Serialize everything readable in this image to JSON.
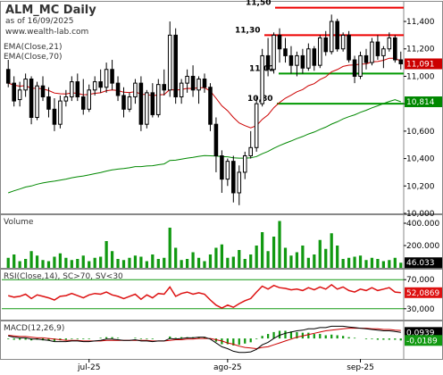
{
  "header": {
    "title": "ALM_MC Daily",
    "subtitle": "as of 16/09/2025",
    "source": "www.wealth-lab.com",
    "legend_ema21": "EMA(Close,21)",
    "legend_ema70": "EMA(Close,70)"
  },
  "colors": {
    "up": "#000000",
    "down": "#000000",
    "ema21": "#cc0000",
    "ema70": "#008800",
    "volume": "#119911",
    "rsi": "#dd1111",
    "macd": "#000000",
    "signal": "#cc0000",
    "hist": "#119911",
    "resistance": "#ee0000",
    "support": "#009900"
  },
  "labels": {
    "price_ticks": [
      "11,400",
      "11,200",
      "11,000",
      "10,800",
      "10,600",
      "10,400",
      "10,200",
      "10,000"
    ],
    "levels": [
      "11,50",
      "11,30",
      "11,02",
      "10,80"
    ],
    "price_tag_close": "11,091",
    "price_tag_ema70": "10,814",
    "volume_title": "Volume",
    "volume_ticks": [
      "400.000",
      "200.000"
    ],
    "volume_tag": "46.033",
    "rsi_title": "RSI(Close,14), SC>70, SV<30",
    "rsi_ticks": [
      "70,000",
      "30,000"
    ],
    "rsi_tag": "52,0869",
    "macd_title": "MACD(12,26,9)",
    "macd_tag1": "0,0939",
    "macd_tag2": "-0,0189",
    "months": [
      "jul-25",
      "ago-25",
      "sep-25"
    ]
  },
  "chart_data": [
    {
      "type": "candlestick",
      "title": "ALM_MC Daily",
      "ylim": [
        10000,
        11550
      ],
      "series": [
        {
          "name": "OHLC",
          "values": [
            [
              11050,
              11120,
              10920,
              10950
            ],
            [
              10950,
              11000,
              10780,
              10820
            ],
            [
              10830,
              10960,
              10780,
              10900
            ],
            [
              10900,
              11020,
              10850,
              10980
            ],
            [
              10980,
              11000,
              10650,
              10700
            ],
            [
              10700,
              10960,
              10680,
              10930
            ],
            [
              10930,
              11000,
              10820,
              10850
            ],
            [
              10850,
              10920,
              10700,
              10760
            ],
            [
              10760,
              10840,
              10600,
              10650
            ],
            [
              10650,
              10860,
              10620,
              10820
            ],
            [
              10820,
              10900,
              10780,
              10850
            ],
            [
              10850,
              11000,
              10820,
              10960
            ],
            [
              10960,
              11020,
              10820,
              10850
            ],
            [
              10850,
              10980,
              10720,
              10760
            ],
            [
              10760,
              10940,
              10740,
              10900
            ],
            [
              10900,
              11000,
              10860,
              10960
            ],
            [
              10960,
              11050,
              10880,
              10920
            ],
            [
              10920,
              11100,
              10880,
              11050
            ],
            [
              11050,
              11120,
              10900,
              10950
            ],
            [
              10950,
              11000,
              10820,
              10860
            ],
            [
              10860,
              10920,
              10700,
              10760
            ],
            [
              10760,
              10880,
              10740,
              10850
            ],
            [
              10850,
              10980,
              10800,
              10950
            ],
            [
              10950,
              11000,
              10600,
              10650
            ],
            [
              10650,
              10900,
              10620,
              10880
            ],
            [
              10880,
              10950,
              10700,
              10720
            ],
            [
              10720,
              10980,
              10700,
              10940
            ],
            [
              10940,
              11050,
              10860,
              10900
            ],
            [
              10900,
              11400,
              10850,
              11300
            ],
            [
              11300,
              11350,
              10800,
              10850
            ],
            [
              10850,
              10980,
              10800,
              10950
            ],
            [
              10950,
              11050,
              10880,
              11000
            ],
            [
              11000,
              11080,
              10850,
              10900
            ],
            [
              10900,
              11000,
              10800,
              10980
            ],
            [
              10980,
              11020,
              10880,
              10920
            ],
            [
              10920,
              10950,
              10600,
              10650
            ],
            [
              10650,
              10700,
              10300,
              10420
            ],
            [
              10420,
              10460,
              10150,
              10250
            ],
            [
              10250,
              10400,
              10200,
              10380
            ],
            [
              10380,
              10420,
              10080,
              10150
            ],
            [
              10150,
              10350,
              10060,
              10300
            ],
            [
              10300,
              10450,
              10250,
              10420
            ],
            [
              10420,
              10600,
              10400,
              10480
            ],
            [
              10480,
              10850,
              10450,
              10800
            ],
            [
              10800,
              11200,
              10780,
              11150
            ],
            [
              11150,
              11280,
              11000,
              11050
            ],
            [
              11050,
              11320,
              11020,
              11300
            ],
            [
              11300,
              11350,
              11100,
              11200
            ],
            [
              11200,
              11280,
              11100,
              11150
            ],
            [
              11150,
              11220,
              11020,
              11080
            ],
            [
              11080,
              11180,
              11000,
              11150
            ],
            [
              11150,
              11200,
              11020,
              11060
            ],
            [
              11060,
              11240,
              11040,
              11200
            ],
            [
              11200,
              11220,
              11040,
              11080
            ],
            [
              11080,
              11300,
              11060,
              11280
            ],
            [
              11280,
              11330,
              11150,
              11180
            ],
            [
              11180,
              11450,
              11160,
              11400
            ],
            [
              11400,
              11420,
              11180,
              11200
            ],
            [
              11200,
              11320,
              11180,
              11300
            ],
            [
              11300,
              11330,
              11100,
              11120
            ],
            [
              11120,
              11150,
              10950,
              11000
            ],
            [
              11000,
              11180,
              10980,
              11150
            ],
            [
              11150,
              11200,
              11050,
              11100
            ],
            [
              11100,
              11280,
              11080,
              11250
            ],
            [
              11250,
              11300,
              11120,
              11150
            ],
            [
              11150,
              11220,
              11060,
              11200
            ],
            [
              11200,
              11320,
              11180,
              11280
            ],
            [
              11280,
              11300,
              11100,
              11120
            ],
            [
              11120,
              11180,
              11050,
              11091
            ]
          ]
        },
        {
          "name": "EMA(Close,21)",
          "values": [
            10950,
            10935,
            10928,
            10932,
            10912,
            10914,
            10908,
            10896,
            10878,
            10873,
            10871,
            10879,
            10876,
            10865,
            10868,
            10876,
            10880,
            10895,
            10900,
            10896,
            10884,
            10882,
            10888,
            10868,
            10868,
            10858,
            10864,
            10867,
            10904,
            10899,
            10903,
            10912,
            10911,
            10916,
            10916,
            10892,
            10840,
            10785,
            10748,
            10700,
            10660,
            10640,
            10624,
            10640,
            10686,
            10719,
            10771,
            10809,
            10840,
            10862,
            10887,
            10903,
            10931,
            10946,
            10976,
            10996,
            11033,
            11049,
            11072,
            11081,
            11083,
            11089,
            11090,
            11105,
            11108,
            11117,
            11132,
            11131,
            11111
          ]
        },
        {
          "name": "EMA(Close,70)",
          "values": [
            10150,
            10165,
            10178,
            10192,
            10200,
            10213,
            10222,
            10229,
            10235,
            10242,
            10250,
            10260,
            10267,
            10273,
            10281,
            10290,
            10298,
            10309,
            10317,
            10323,
            10327,
            10333,
            10341,
            10341,
            10346,
            10348,
            10355,
            10361,
            10386,
            10388,
            10395,
            10403,
            10409,
            10416,
            10422,
            10420,
            10418,
            10414,
            10413,
            10406,
            10403,
            10403,
            10405,
            10415,
            10435,
            10452,
            10475,
            10494,
            10512,
            10528,
            10546,
            10561,
            10579,
            10593,
            10613,
            10629,
            10651,
            10668,
            10689,
            10705,
            10719,
            10737,
            10752,
            10770,
            10785,
            10801,
            10817,
            10830,
            10814
          ]
        }
      ],
      "annotations": {
        "resistance": [
          11500,
          11300
        ],
        "support": [
          11020,
          10800
        ]
      }
    },
    {
      "type": "bar",
      "title": "Volume",
      "ylim": [
        0,
        480000
      ],
      "values": [
        90000,
        120000,
        60000,
        80000,
        150000,
        110000,
        70000,
        60000,
        100000,
        130000,
        90000,
        70000,
        80000,
        110000,
        60000,
        90000,
        100000,
        240000,
        150000,
        80000,
        70000,
        90000,
        110000,
        100000,
        60000,
        120000,
        80000,
        90000,
        360000,
        180000,
        70000,
        80000,
        140000,
        90000,
        60000,
        120000,
        180000,
        210000,
        90000,
        100000,
        160000,
        80000,
        120000,
        200000,
        320000,
        150000,
        280000,
        420000,
        180000,
        110000,
        140000,
        200000,
        90000,
        120000,
        250000,
        170000,
        310000,
        200000,
        80000,
        90000,
        100000,
        110000,
        70000,
        90000,
        80000,
        60000,
        70000,
        90000,
        46033
      ]
    },
    {
      "type": "line",
      "title": "RSI(Close,14), SC>70, SV<30",
      "ylim": [
        15,
        85
      ],
      "values": [
        48,
        46,
        47,
        50,
        44,
        49,
        47,
        45,
        42,
        47,
        48,
        51,
        48,
        45,
        49,
        51,
        50,
        53,
        49,
        47,
        44,
        47,
        50,
        43,
        49,
        45,
        51,
        50,
        60,
        47,
        51,
        53,
        50,
        52,
        50,
        42,
        35,
        31,
        35,
        32,
        37,
        41,
        44,
        53,
        61,
        57,
        62,
        59,
        58,
        56,
        57,
        55,
        59,
        56,
        60,
        57,
        63,
        57,
        60,
        55,
        53,
        57,
        55,
        59,
        55,
        57,
        59,
        53,
        52.09
      ],
      "thresholds": [
        70,
        30
      ]
    },
    {
      "type": "line",
      "title": "MACD(12,26,9)",
      "ylim": [
        -0.32,
        0.28
      ],
      "series": [
        {
          "name": "MACD",
          "values": [
            0.04,
            0.02,
            0.01,
            0.01,
            -0.01,
            -0.01,
            -0.02,
            -0.03,
            -0.05,
            -0.05,
            -0.05,
            -0.04,
            -0.04,
            -0.05,
            -0.05,
            -0.04,
            -0.03,
            -0.01,
            -0.01,
            -0.02,
            -0.03,
            -0.03,
            -0.02,
            -0.04,
            -0.04,
            -0.05,
            -0.04,
            -0.04,
            0.0,
            -0.01,
            0.0,
            0.01,
            0.01,
            0.02,
            0.02,
            -0.01,
            -0.07,
            -0.13,
            -0.16,
            -0.2,
            -0.22,
            -0.22,
            -0.21,
            -0.17,
            -0.1,
            -0.06,
            0.0,
            0.05,
            0.08,
            0.1,
            0.12,
            0.13,
            0.15,
            0.15,
            0.17,
            0.17,
            0.19,
            0.19,
            0.19,
            0.18,
            0.17,
            0.16,
            0.15,
            0.14,
            0.13,
            0.12,
            0.12,
            0.11,
            0.0939
          ]
        },
        {
          "name": "Signal",
          "values": [
            0.05,
            0.04,
            0.03,
            0.03,
            0.02,
            0.01,
            0.01,
            0.0,
            -0.01,
            -0.02,
            -0.03,
            -0.03,
            -0.03,
            -0.04,
            -0.04,
            -0.04,
            -0.04,
            -0.03,
            -0.03,
            -0.03,
            -0.03,
            -0.03,
            -0.03,
            -0.03,
            -0.03,
            -0.04,
            -0.04,
            -0.04,
            -0.03,
            -0.02,
            -0.02,
            -0.01,
            -0.01,
            0.0,
            0.0,
            0.0,
            -0.02,
            -0.04,
            -0.07,
            -0.09,
            -0.12,
            -0.14,
            -0.15,
            -0.16,
            -0.14,
            -0.13,
            -0.1,
            -0.07,
            -0.04,
            -0.01,
            0.02,
            0.04,
            0.06,
            0.08,
            0.1,
            0.12,
            0.13,
            0.14,
            0.15,
            0.16,
            0.16,
            0.16,
            0.16,
            0.15,
            0.15,
            0.14,
            0.14,
            0.13,
            0.125
          ]
        }
      ]
    }
  ]
}
